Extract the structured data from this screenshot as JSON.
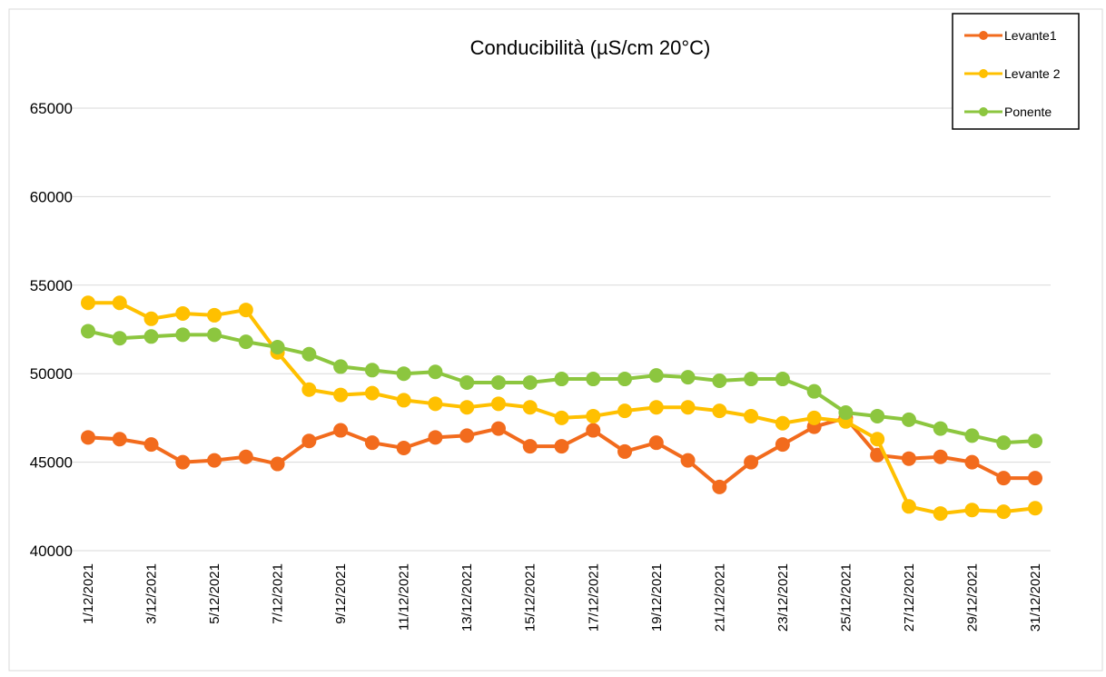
{
  "chart_data": {
    "type": "line",
    "title": "Conducibilità (µS/cm 20°C)",
    "categories": [
      "1/12/2021",
      null,
      "3/12/2021",
      null,
      "5/12/2021",
      null,
      "7/12/2021",
      null,
      "9/12/2021",
      null,
      "11/12/2021",
      null,
      "13/12/2021",
      null,
      "15/12/2021",
      null,
      "17/12/2021",
      null,
      "19/12/2021",
      null,
      "21/12/2021",
      null,
      "23/12/2021",
      null,
      "25/12/2021",
      null,
      "27/12/2021",
      null,
      "29/12/2021",
      null,
      "31/12/2021"
    ],
    "series": [
      {
        "name": "Levante1",
        "color": "#f26b1d",
        "values": [
          46400,
          46300,
          46000,
          45000,
          45100,
          45300,
          44900,
          46200,
          46800,
          46100,
          45800,
          46400,
          46500,
          46900,
          45900,
          45900,
          46800,
          45600,
          46100,
          45100,
          43600,
          45000,
          46000,
          47000,
          47500,
          45400,
          45200,
          45300,
          45000,
          44100,
          44100
        ]
      },
      {
        "name": "Levante 2",
        "color": "#ffc000",
        "values": [
          54000,
          54000,
          53100,
          53400,
          53300,
          53600,
          51200,
          49100,
          48800,
          48900,
          48500,
          48300,
          48100,
          48300,
          48100,
          47500,
          47600,
          47900,
          48100,
          48100,
          47900,
          47600,
          47200,
          47500,
          47300,
          46300,
          42500,
          42100,
          42300,
          42200,
          42400
        ]
      },
      {
        "name": "Ponente",
        "color": "#8cc63f",
        "values": [
          52400,
          52000,
          52100,
          52200,
          52200,
          51800,
          51500,
          51100,
          50400,
          50200,
          50000,
          50100,
          49500,
          49500,
          49500,
          49700,
          49700,
          49700,
          49900,
          49800,
          49600,
          49700,
          49700,
          49000,
          47800,
          47600,
          47400,
          46900,
          46500,
          46100,
          46200
        ]
      }
    ],
    "ylim": [
      40000,
      65000
    ],
    "yticks": [
      40000,
      45000,
      50000,
      55000,
      60000,
      65000
    ],
    "grid": true,
    "legend": "top-right"
  }
}
